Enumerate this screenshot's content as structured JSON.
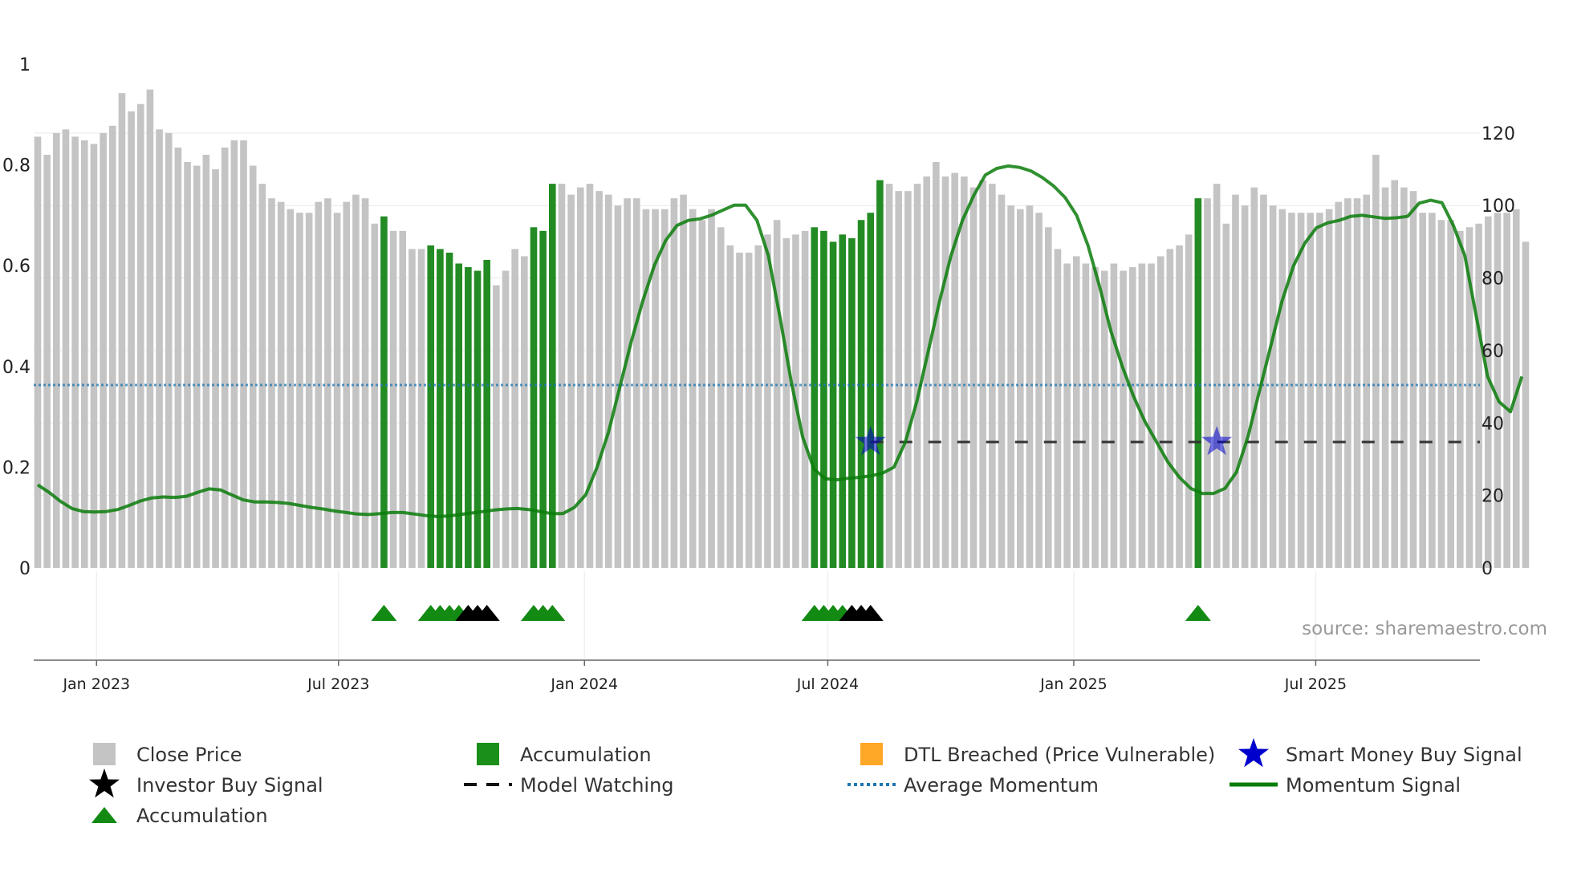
{
  "source": "source: sharemaestro.com",
  "colors": {
    "close_price": "#c4c4c4",
    "accumulation": "#238b23",
    "dtl": "#ffa726",
    "smart_money": "#0000cc",
    "investor": "#000000",
    "model_watching": "#333333",
    "avg_momentum": "#1f77b4",
    "momentum": "#0a7d0a"
  },
  "legend": [
    {
      "key": "close_price",
      "label": "Close Price",
      "marker": "square"
    },
    {
      "key": "accumulation",
      "label": "Accumulation",
      "marker": "square"
    },
    {
      "key": "dtl",
      "label": "DTL Breached (Price Vulnerable)",
      "marker": "square"
    },
    {
      "key": "smart_money",
      "label": "Smart Money Buy Signal",
      "marker": "star"
    },
    {
      "key": "investor",
      "label": "Investor Buy Signal",
      "marker": "star"
    },
    {
      "key": "model_watching",
      "label": "Model Watching",
      "marker": "dash"
    },
    {
      "key": "avg_momentum",
      "label": "Average Momentum",
      "marker": "dotted"
    },
    {
      "key": "momentum",
      "label": "Momentum Signal",
      "marker": "line"
    },
    {
      "key": "accumulation",
      "label": "Accumulation",
      "marker": "triangle"
    }
  ],
  "chart_data": {
    "type": "bar",
    "title": "",
    "x_start": "2022-11-18",
    "x_step_days": 7,
    "x_ticks": [
      {
        "label": "Jan 2023",
        "date": "2023-01-01"
      },
      {
        "label": "Jul 2023",
        "date": "2023-07-01"
      },
      {
        "label": "Jan 2024",
        "date": "2024-01-01"
      },
      {
        "label": "Jul 2024",
        "date": "2024-07-01"
      },
      {
        "label": "Jan 2025",
        "date": "2025-01-01"
      },
      {
        "label": "Jul 2025",
        "date": "2025-07-01"
      }
    ],
    "left_axis": {
      "ylim": [
        0,
        1
      ],
      "ticks": [
        0,
        0.2,
        0.4,
        0.6,
        0.8,
        1
      ],
      "tick_labels": [
        "0",
        "0.2",
        "0.4",
        "0.6",
        "0.8",
        "1"
      ]
    },
    "right_axis": {
      "ylim": [
        0,
        139
      ],
      "ticks": [
        0,
        20,
        40,
        60,
        80,
        100,
        120
      ],
      "tick_labels": [
        "0",
        "20",
        "40",
        "60",
        "80",
        "100",
        "120"
      ]
    },
    "close_price": [
      119,
      114,
      120,
      121,
      119,
      118,
      117,
      120,
      122,
      131,
      126,
      128,
      132,
      121,
      120,
      116,
      112,
      111,
      114,
      110,
      116,
      118,
      118,
      111,
      106,
      102,
      101,
      99,
      98,
      98,
      101,
      102,
      98,
      101,
      103,
      102,
      95,
      97,
      93,
      93,
      88,
      88,
      89,
      88,
      87,
      84,
      83,
      82,
      85,
      78,
      82,
      88,
      86,
      94,
      93,
      106,
      106,
      103,
      105,
      106,
      104,
      103,
      100,
      102,
      102,
      99,
      99,
      99,
      102,
      103,
      99,
      96,
      99,
      94,
      89,
      87,
      87,
      89,
      92,
      96,
      91,
      92,
      93,
      94,
      93,
      90,
      92,
      91,
      96,
      98,
      107,
      106,
      104,
      104,
      106,
      108,
      112,
      108,
      109,
      108,
      105,
      107,
      106,
      103,
      100,
      99,
      100,
      98,
      94,
      88,
      84,
      86,
      84,
      83,
      82,
      84,
      82,
      83,
      84,
      84,
      86,
      88,
      89,
      92,
      102,
      102,
      106,
      95,
      103,
      100,
      105,
      103,
      100,
      99,
      98,
      98,
      98,
      98,
      99,
      101,
      102,
      102,
      103,
      114,
      105,
      107,
      105,
      104,
      98,
      98,
      96,
      96,
      93,
      94,
      95,
      97,
      98,
      98,
      99,
      90
    ],
    "accumulation_bars": [
      37,
      42,
      43,
      44,
      45,
      46,
      47,
      48,
      53,
      54,
      55,
      83,
      84,
      85,
      86,
      87,
      88,
      89,
      90,
      124
    ],
    "momentum_signal": [
      0.165,
      0.15,
      0.132,
      0.118,
      0.112,
      0.111,
      0.112,
      0.116,
      0.124,
      0.133,
      0.139,
      0.141,
      0.14,
      0.142,
      0.15,
      0.157,
      0.155,
      0.145,
      0.135,
      0.131,
      0.131,
      0.13,
      0.128,
      0.124,
      0.12,
      0.117,
      0.113,
      0.11,
      0.107,
      0.106,
      0.108,
      0.11,
      0.11,
      0.107,
      0.104,
      0.102,
      0.103,
      0.106,
      0.109,
      0.112,
      0.115,
      0.117,
      0.118,
      0.116,
      0.112,
      0.108,
      0.108,
      0.12,
      0.145,
      0.2,
      0.27,
      0.36,
      0.45,
      0.53,
      0.6,
      0.65,
      0.68,
      0.69,
      0.693,
      0.7,
      0.71,
      0.72,
      0.72,
      0.69,
      0.62,
      0.5,
      0.37,
      0.26,
      0.196,
      0.177,
      0.175,
      0.178,
      0.18,
      0.183,
      0.188,
      0.2,
      0.25,
      0.33,
      0.43,
      0.53,
      0.62,
      0.69,
      0.74,
      0.78,
      0.793,
      0.798,
      0.795,
      0.788,
      0.775,
      0.758,
      0.735,
      0.7,
      0.64,
      0.56,
      0.47,
      0.4,
      0.34,
      0.29,
      0.25,
      0.21,
      0.18,
      0.158,
      0.148,
      0.148,
      0.158,
      0.19,
      0.26,
      0.35,
      0.44,
      0.53,
      0.6,
      0.645,
      0.675,
      0.685,
      0.69,
      0.698,
      0.7,
      0.697,
      0.694,
      0.695,
      0.698,
      0.724,
      0.73,
      0.725,
      0.68,
      0.62,
      0.5,
      0.38,
      0.33,
      0.31,
      0.38
    ],
    "momentum_start_index": 0,
    "momentum_step": 1.22,
    "average_momentum": 0.363,
    "model_watching": {
      "value": 0.25,
      "from_index": 89,
      "to_index": 156
    },
    "smart_money_signals": [
      {
        "index": 89,
        "value": 0.25
      },
      {
        "index": 126,
        "value": 0.25
      }
    ],
    "accumulation_triangles": [
      37,
      42,
      43,
      44,
      45,
      53,
      54,
      55,
      83,
      84,
      85,
      86,
      124
    ],
    "investor_triangles": [
      46,
      47,
      48,
      87,
      88,
      89
    ]
  }
}
